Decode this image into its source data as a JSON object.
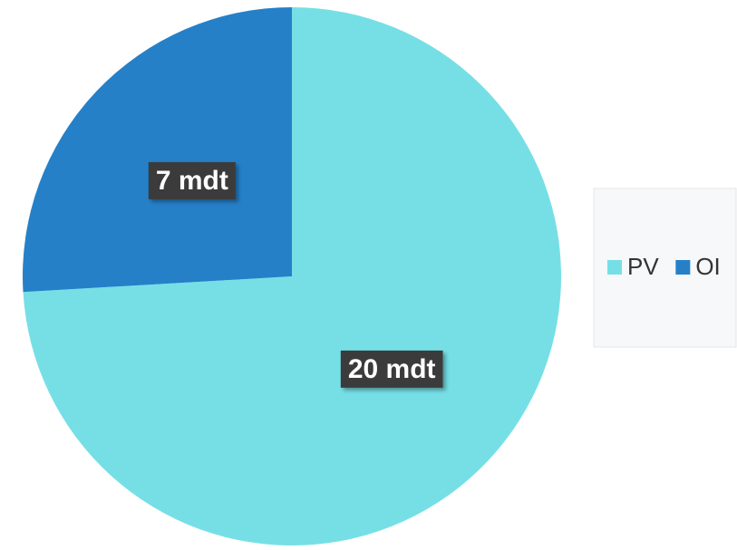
{
  "chart_data": {
    "type": "pie",
    "categories": [
      "PV",
      "OI"
    ],
    "values": [
      20,
      7
    ],
    "value_labels": [
      "20 mdt",
      "7 mdt"
    ],
    "colors": [
      "#76dfe6",
      "#2580c8"
    ],
    "legend": "right"
  }
}
